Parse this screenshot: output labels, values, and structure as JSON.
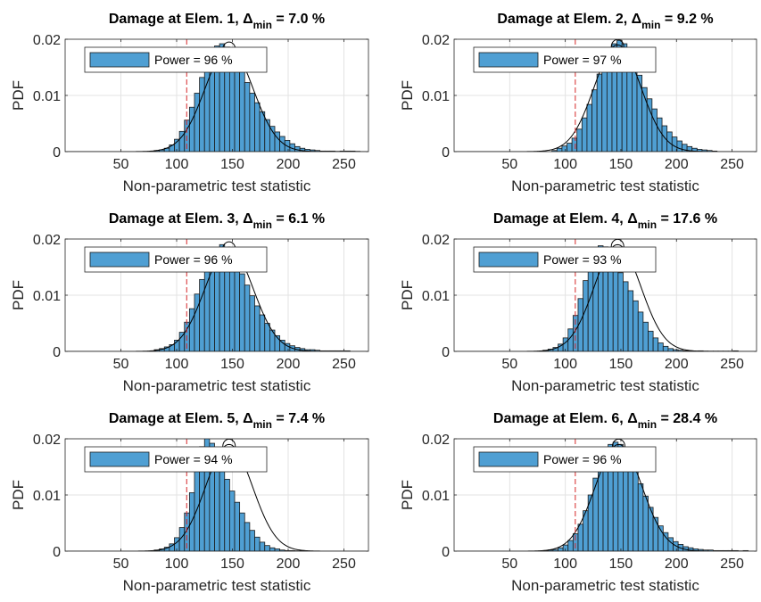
{
  "figure": {
    "ylabel": "PDF",
    "xlabel": "Non-parametric test statistic",
    "legend_prefix": "Power = ",
    "legend_suffix": " %",
    "title_prefix": "Damage at Elem. ",
    "delta_symbol": "Δ",
    "delta_sub": "min",
    "colors": {
      "bar_fill": "#4f9fd3",
      "bar_edge": "#1a1a1a",
      "curve": "#000000",
      "threshold": "#d62728",
      "grid": "#e3e3e3",
      "axis": "#262626"
    }
  },
  "chart_data": [
    {
      "type": "bar",
      "panel": 1,
      "title_elem": "1",
      "delta_min": "7.0",
      "power": "96",
      "xlim": [
        0,
        272
      ],
      "ylim": [
        0,
        0.02
      ],
      "xticks": [
        50,
        100,
        150,
        200,
        250
      ],
      "yticks": [
        0,
        0.01,
        0.02
      ],
      "ytick_labels": [
        "0",
        "0.01",
        "0.02"
      ],
      "threshold_x": 109,
      "bin_start": 80,
      "bin_width": 4.5,
      "values": [
        0.0002,
        0.0003,
        0.0006,
        0.0012,
        0.0022,
        0.0036,
        0.0056,
        0.0079,
        0.0104,
        0.0132,
        0.0152,
        0.0172,
        0.0188,
        0.0192,
        0.0186,
        0.0176,
        0.016,
        0.0142,
        0.0123,
        0.0104,
        0.0087,
        0.0071,
        0.0057,
        0.0045,
        0.0035,
        0.0027,
        0.002,
        0.0014,
        0.0009,
        0.0006,
        0.0004,
        0.0003,
        0.0002,
        0.0001,
        0.0001,
        0.0001,
        5e-05,
        0.0001,
        0.0001,
        0.0001,
        5e-05
      ],
      "curve": {
        "mean": 147,
        "std": 21.5
      }
    },
    {
      "type": "bar",
      "panel": 2,
      "title_elem": "2",
      "delta_min": "9.2",
      "power": "97",
      "xlim": [
        0,
        272
      ],
      "ylim": [
        0,
        0.02
      ],
      "xticks": [
        50,
        100,
        150,
        200,
        250
      ],
      "yticks": [
        0,
        0.01,
        0.02
      ],
      "ytick_labels": [
        "0",
        "0.01",
        "0.02"
      ],
      "threshold_x": 109,
      "bin_start": 88,
      "bin_width": 4.5,
      "values": [
        0.0002,
        0.0006,
        0.001,
        0.0015,
        0.0024,
        0.004,
        0.006,
        0.0084,
        0.011,
        0.0138,
        0.016,
        0.0178,
        0.0192,
        0.0198,
        0.0192,
        0.0178,
        0.0158,
        0.0136,
        0.0114,
        0.0094,
        0.0076,
        0.006,
        0.0046,
        0.0035,
        0.0026,
        0.0019,
        0.0013,
        0.0009,
        0.0006,
        0.0004,
        0.0003,
        0.0002,
        0.0001
      ],
      "curve": {
        "mean": 147,
        "std": 21
      }
    },
    {
      "type": "bar",
      "panel": 3,
      "title_elem": "3",
      "delta_min": "6.1",
      "power": "96",
      "xlim": [
        0,
        272
      ],
      "ylim": [
        0,
        0.02
      ],
      "xticks": [
        50,
        100,
        150,
        200,
        250
      ],
      "yticks": [
        0,
        0.01,
        0.02
      ],
      "ytick_labels": [
        "0",
        "0.01",
        "0.02"
      ],
      "threshold_x": 109,
      "bin_start": 80,
      "bin_width": 4.5,
      "values": [
        0.0003,
        0.0005,
        0.0008,
        0.0012,
        0.002,
        0.0034,
        0.0052,
        0.0076,
        0.0102,
        0.0128,
        0.0152,
        0.017,
        0.0184,
        0.019,
        0.0184,
        0.0172,
        0.0156,
        0.0138,
        0.0118,
        0.0099,
        0.0081,
        0.0065,
        0.005,
        0.0038,
        0.0028,
        0.002,
        0.0014,
        0.001,
        0.0007,
        0.0005,
        0.0003,
        0.0003,
        0.0002,
        0.0001,
        0.0001,
        0.0001,
        0.0001,
        0.0001,
        0.0001
      ],
      "curve": {
        "mean": 147,
        "std": 21.5
      }
    },
    {
      "type": "bar",
      "panel": 4,
      "title_elem": "4",
      "delta_min": "17.6",
      "power": "93",
      "xlim": [
        0,
        272
      ],
      "ylim": [
        0,
        0.02
      ],
      "xticks": [
        50,
        100,
        150,
        200,
        250
      ],
      "yticks": [
        0,
        0.01,
        0.02
      ],
      "ytick_labels": [
        "0",
        "0.01",
        "0.02"
      ],
      "threshold_x": 109,
      "bin_start": 80,
      "bin_width": 4.5,
      "values": [
        0.0002,
        0.0004,
        0.0007,
        0.0013,
        0.0024,
        0.004,
        0.0064,
        0.0094,
        0.0126,
        0.0156,
        0.0176,
        0.0188,
        0.0186,
        0.0176,
        0.0158,
        0.014,
        0.0124,
        0.0108,
        0.009,
        0.007,
        0.0052,
        0.0036,
        0.0024,
        0.0015,
        0.0009,
        0.0005,
        0.0003,
        0.0002,
        0.0001,
        0.0001,
        5e-05,
        0.0001,
        5e-05,
        5e-05,
        5e-05,
        5e-05,
        5e-05,
        5e-05,
        0.0001
      ],
      "curve": {
        "mean": 147,
        "std": 21
      }
    },
    {
      "type": "bar",
      "panel": 5,
      "title_elem": "5",
      "delta_min": "7.4",
      "power": "94",
      "xlim": [
        0,
        272
      ],
      "ylim": [
        0,
        0.02
      ],
      "xticks": [
        50,
        100,
        150,
        200,
        250
      ],
      "yticks": [
        0,
        0.01,
        0.02
      ],
      "ytick_labels": [
        "0",
        "0.01",
        "0.02"
      ],
      "threshold_x": 109,
      "bin_start": 80,
      "bin_width": 4.5,
      "values": [
        0.0002,
        0.0004,
        0.0007,
        0.0013,
        0.0024,
        0.0042,
        0.0068,
        0.0104,
        0.0148,
        0.0186,
        0.0204,
        0.0192,
        0.0172,
        0.015,
        0.0128,
        0.0107,
        0.0087,
        0.0068,
        0.0051,
        0.0037,
        0.0025,
        0.0016,
        0.001,
        0.0006,
        0.0004,
        0.0002,
        0.0001,
        0.0001,
        5e-05,
        0.0001
      ],
      "curve": {
        "mean": 147,
        "std": 21
      }
    },
    {
      "type": "bar",
      "panel": 6,
      "title_elem": "6",
      "delta_min": "28.4",
      "power": "96",
      "xlim": [
        0,
        272
      ],
      "ylim": [
        0,
        0.02
      ],
      "xticks": [
        50,
        100,
        150,
        200,
        250
      ],
      "yticks": [
        0,
        0.01,
        0.02
      ],
      "ytick_labels": [
        "0",
        "0.01",
        "0.02"
      ],
      "threshold_x": 109,
      "bin_start": 80,
      "bin_width": 4.5,
      "values": [
        0.0001,
        0.0002,
        0.0003,
        0.0006,
        0.0011,
        0.0019,
        0.0031,
        0.0048,
        0.0072,
        0.01,
        0.013,
        0.0158,
        0.0178,
        0.019,
        0.0194,
        0.019,
        0.0178,
        0.0162,
        0.0142,
        0.012,
        0.0098,
        0.0078,
        0.006,
        0.0045,
        0.0033,
        0.0024,
        0.0017,
        0.0012,
        0.0008,
        0.0006,
        0.0004,
        0.0003,
        0.0002,
        0.0002,
        0.0001,
        0.0001,
        0.0001,
        0.0001,
        0.0001,
        5e-05,
        0.0001
      ],
      "curve": {
        "mean": 148,
        "std": 21
      }
    }
  ]
}
